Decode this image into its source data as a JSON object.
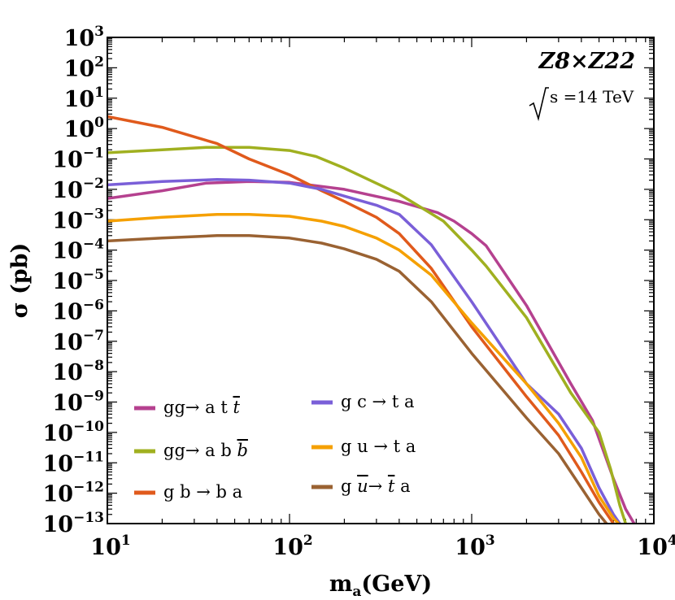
{
  "chart_data": {
    "type": "line",
    "title": "",
    "xlabel": "m",
    "xlabel_sub": "a",
    "xlabel_unit": "(GeV)",
    "ylabel": "σ (pb)",
    "x_scale": "log",
    "y_scale": "log",
    "xlim": [
      10,
      10000
    ],
    "ylim": [
      1e-13,
      1000
    ],
    "grid": false,
    "legend_position": "bottom-left",
    "x_ticks": [
      {
        "base": "10",
        "exp": "1",
        "value": 10
      },
      {
        "base": "10",
        "exp": "2",
        "value": 100
      },
      {
        "base": "10",
        "exp": "3",
        "value": 1000
      },
      {
        "base": "10",
        "exp": "4",
        "value": 10000
      }
    ],
    "y_ticks": [
      {
        "base": "10",
        "exp": "3",
        "value": 1000.0
      },
      {
        "base": "10",
        "exp": "2",
        "value": 100.0
      },
      {
        "base": "10",
        "exp": "1",
        "value": 10.0
      },
      {
        "base": "10",
        "exp": "0",
        "value": 1.0
      },
      {
        "base": "10",
        "exp": "−1",
        "value": 0.1
      },
      {
        "base": "10",
        "exp": "−2",
        "value": 0.01
      },
      {
        "base": "10",
        "exp": "−3",
        "value": 0.001
      },
      {
        "base": "10",
        "exp": "−4",
        "value": 0.0001
      },
      {
        "base": "10",
        "exp": "−5",
        "value": 1e-05
      },
      {
        "base": "10",
        "exp": "−6",
        "value": 1e-06
      },
      {
        "base": "10",
        "exp": "−7",
        "value": 1e-07
      },
      {
        "base": "10",
        "exp": "−8",
        "value": 1e-08
      },
      {
        "base": "10",
        "exp": "−9",
        "value": 1e-09
      },
      {
        "base": "10",
        "exp": "−10",
        "value": 1e-10
      },
      {
        "base": "10",
        "exp": "−11",
        "value": 1e-11
      },
      {
        "base": "10",
        "exp": "−12",
        "value": 1e-12
      },
      {
        "base": "10",
        "exp": "−13",
        "value": 1e-13
      }
    ],
    "annotations": {
      "model": "Z8×Z22",
      "energy": "s =14 TeV"
    },
    "series": [
      {
        "name": "gg→ a t t̄",
        "color": "#b5418f",
        "x": [
          10,
          20,
          35,
          60,
          100,
          200,
          400,
          650,
          800,
          1000,
          1200,
          2000,
          3500,
          4600,
          6000,
          7000,
          7800
        ],
        "y": [
          0.005,
          0.009,
          0.016,
          0.018,
          0.017,
          0.01,
          0.004,
          0.0017,
          0.0009,
          0.00035,
          0.00014,
          1.5e-06,
          4e-09,
          2.5e-10,
          3e-12,
          3e-13,
          1e-13
        ]
      },
      {
        "name": "gg→ a b b̄",
        "color": "#a0b020",
        "x": [
          10,
          20,
          35,
          60,
          100,
          140,
          200,
          400,
          700,
          1000,
          1200,
          2000,
          3500,
          5000,
          5800,
          6500,
          7000
        ],
        "y": [
          0.16,
          0.2,
          0.24,
          0.24,
          0.19,
          0.12,
          0.05,
          0.007,
          0.0009,
          0.0001,
          3e-05,
          6e-07,
          2e-09,
          1e-10,
          6e-12,
          4e-13,
          1e-13
        ]
      },
      {
        "name": "g b → b a",
        "color": "#e05a1c",
        "x": [
          10,
          20,
          40,
          60,
          100,
          150,
          200,
          300,
          400,
          600,
          1000,
          2000,
          3000,
          4000,
          5000,
          6000
        ],
        "y": [
          2.5,
          1.1,
          0.32,
          0.1,
          0.03,
          0.009,
          0.004,
          0.0012,
          0.00035,
          2.5e-05,
          3e-07,
          1.5e-09,
          8e-11,
          5e-12,
          5e-13,
          1e-13
        ]
      },
      {
        "name": "g c → t a",
        "color": "#7a5fd8",
        "x": [
          10,
          20,
          40,
          60,
          100,
          150,
          200,
          300,
          400,
          600,
          1000,
          2000,
          3000,
          4000,
          5000,
          6000,
          6500
        ],
        "y": [
          0.014,
          0.018,
          0.021,
          0.02,
          0.016,
          0.01,
          0.006,
          0.003,
          0.0015,
          0.00015,
          2e-06,
          4e-09,
          4e-10,
          3e-11,
          1.5e-12,
          2e-13,
          1e-13
        ]
      },
      {
        "name": "g u → t a",
        "color": "#f5a000",
        "x": [
          10,
          20,
          40,
          60,
          100,
          150,
          200,
          300,
          400,
          600,
          1000,
          2000,
          3000,
          4000,
          5000,
          6000,
          6400
        ],
        "y": [
          0.0009,
          0.0012,
          0.0015,
          0.0015,
          0.0013,
          0.0009,
          0.0006,
          0.00025,
          0.0001,
          1.5e-05,
          4e-07,
          4e-09,
          2e-10,
          1.5e-11,
          8e-13,
          1.5e-13,
          1e-13
        ]
      },
      {
        "name": "g ū → t̄ a",
        "color": "#9a6232",
        "x": [
          10,
          20,
          40,
          60,
          100,
          150,
          200,
          300,
          400,
          600,
          1000,
          2000,
          3000,
          4000,
          5000,
          5500
        ],
        "y": [
          0.0002,
          0.00025,
          0.0003,
          0.0003,
          0.00025,
          0.00017,
          0.00011,
          5e-05,
          2e-05,
          2e-06,
          4e-08,
          3e-10,
          2e-11,
          1.5e-12,
          2e-13,
          1e-13
        ]
      }
    ],
    "legend": [
      {
        "pre": "gg→ a t ",
        "over": "t",
        "post": "",
        "series": 0
      },
      {
        "pre": "gg→ a b ",
        "over": "b",
        "post": "",
        "series": 1
      },
      {
        "pre": "g b → b a",
        "over": "",
        "post": "",
        "series": 2
      },
      {
        "pre": "g c → t a",
        "over": "",
        "post": "",
        "series": 3
      },
      {
        "pre": "g u → t a",
        "over": "",
        "post": "",
        "series": 4
      },
      {
        "pre": "g ",
        "over": "u",
        "mid": "→ ",
        "over2": "t",
        "post": " a",
        "series": 5
      }
    ]
  }
}
